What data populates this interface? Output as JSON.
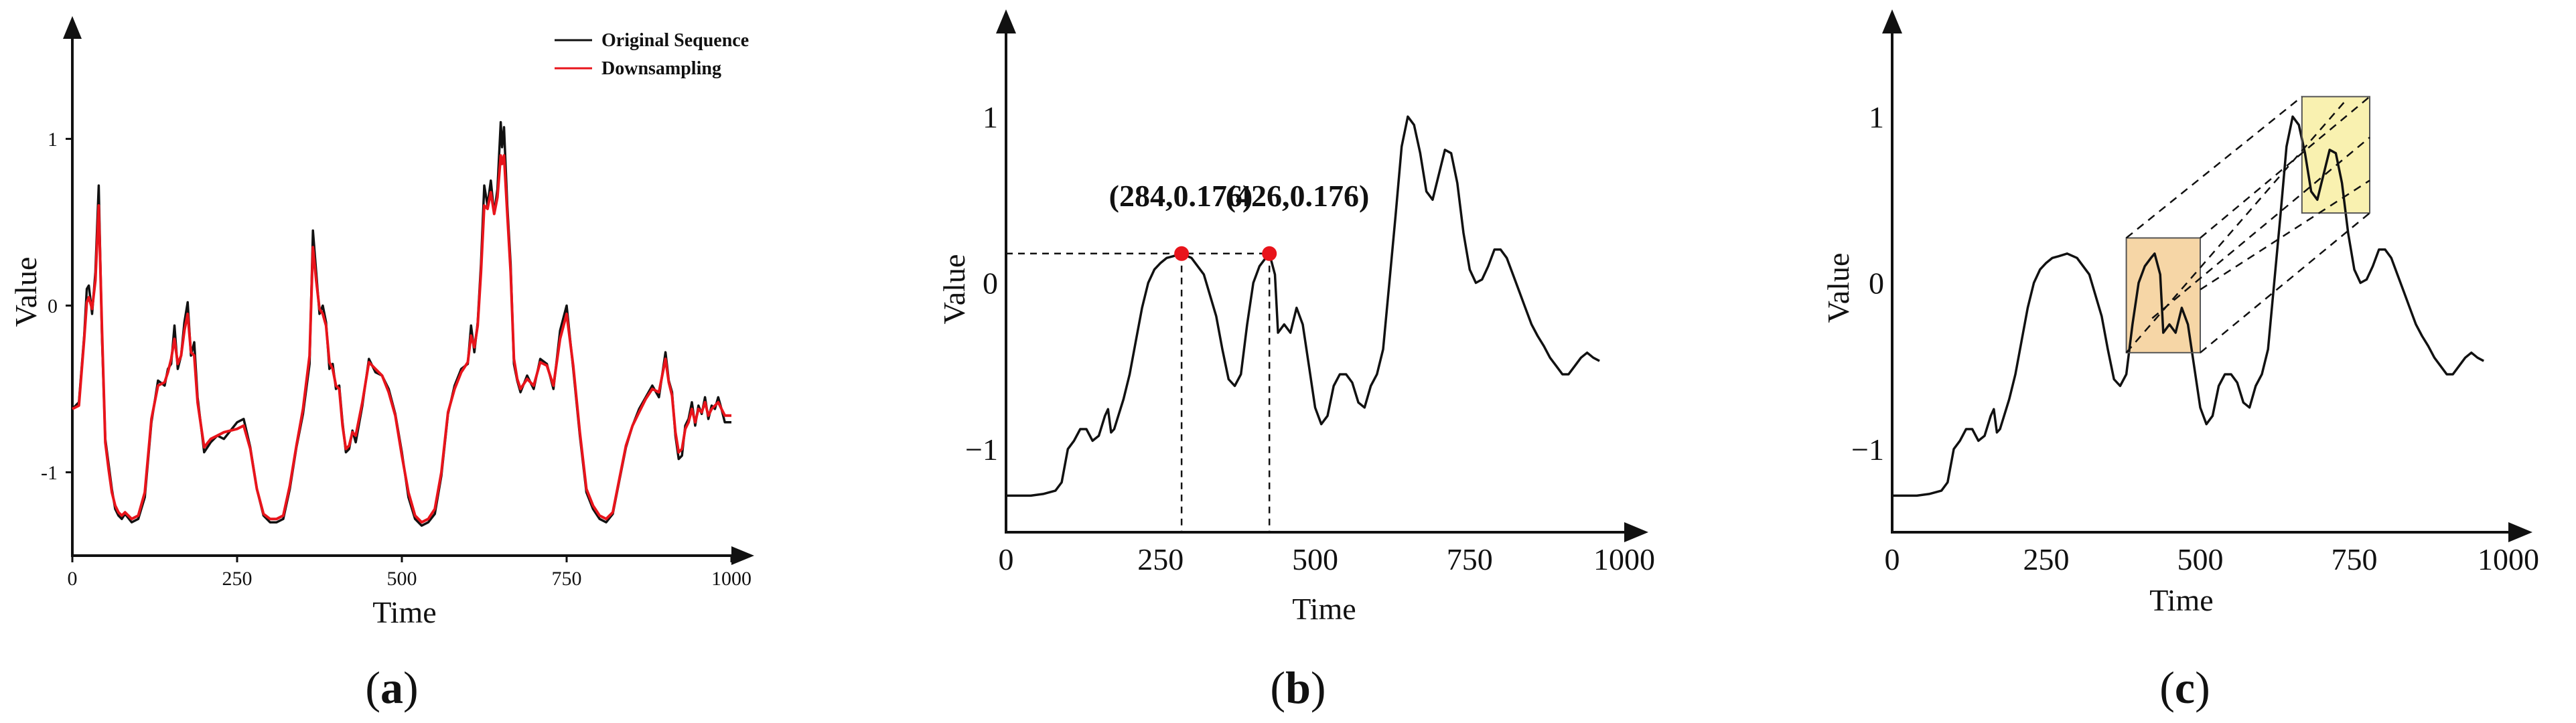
{
  "panels": [
    {
      "open": "(",
      "letter": "a",
      "close": ")"
    },
    {
      "open": "(",
      "letter": "b",
      "close": ")"
    },
    {
      "open": "(",
      "letter": "c",
      "close": ")"
    }
  ],
  "annotations": {
    "point_1": "(284,0.176)",
    "point_2": "(426,0.176)"
  },
  "colors": {
    "original": "#111111",
    "downsampling": "#e8141b",
    "marker": "#e8141b",
    "window_1_fill": "#f6d6a6",
    "window_2_fill": "#f9f1b0"
  },
  "chart_data": [
    {
      "type": "line",
      "panel": "a",
      "xlabel": "Time",
      "ylabel": "Value",
      "xlim": [
        0,
        1000
      ],
      "ylim": [
        -1.5,
        1.6
      ],
      "xticks": [
        "0",
        "250",
        "500",
        "750",
        "1000"
      ],
      "yticks": [
        "1",
        "0",
        "-1"
      ],
      "yticks_values": [
        1,
        0,
        -1
      ],
      "legend": [
        "Original Sequence",
        "Downsampling"
      ],
      "series": [
        {
          "name": "Original Sequence",
          "x": [
            0,
            10,
            18,
            22,
            25,
            30,
            35,
            40,
            45,
            50,
            55,
            60,
            65,
            70,
            75,
            80,
            90,
            100,
            110,
            120,
            130,
            140,
            145,
            150,
            155,
            160,
            165,
            170,
            175,
            180,
            185,
            190,
            200,
            210,
            220,
            230,
            240,
            250,
            260,
            270,
            280,
            290,
            300,
            310,
            320,
            330,
            340,
            350,
            360,
            365,
            370,
            375,
            380,
            385,
            390,
            395,
            400,
            405,
            410,
            415,
            420,
            425,
            430,
            440,
            450,
            460,
            470,
            480,
            490,
            500,
            510,
            520,
            530,
            540,
            550,
            560,
            570,
            580,
            590,
            600,
            605,
            610,
            615,
            620,
            625,
            630,
            635,
            640,
            645,
            650,
            652,
            655,
            660,
            665,
            670,
            675,
            680,
            690,
            700,
            710,
            720,
            730,
            740,
            750,
            760,
            770,
            780,
            790,
            800,
            810,
            820,
            830,
            840,
            850,
            860,
            870,
            880,
            890,
            900,
            905,
            910,
            915,
            920,
            925,
            930,
            935,
            940,
            945,
            950,
            955,
            960,
            965,
            970,
            975,
            980,
            985,
            990,
            1000
          ],
          "y": [
            -0.62,
            -0.58,
            -0.18,
            0.1,
            0.12,
            -0.05,
            0.2,
            0.72,
            -0.2,
            -0.8,
            -0.95,
            -1.1,
            -1.22,
            -1.26,
            -1.28,
            -1.25,
            -1.3,
            -1.28,
            -1.15,
            -0.7,
            -0.45,
            -0.48,
            -0.38,
            -0.35,
            -0.12,
            -0.38,
            -0.3,
            -0.1,
            0.02,
            -0.3,
            -0.22,
            -0.55,
            -0.88,
            -0.82,
            -0.78,
            -0.8,
            -0.75,
            -0.7,
            -0.68,
            -0.85,
            -1.1,
            -1.26,
            -1.3,
            -1.3,
            -1.28,
            -1.1,
            -0.85,
            -0.65,
            -0.35,
            0.45,
            0.2,
            -0.05,
            0.0,
            -0.1,
            -0.38,
            -0.35,
            -0.5,
            -0.48,
            -0.7,
            -0.88,
            -0.86,
            -0.75,
            -0.82,
            -0.6,
            -0.32,
            -0.4,
            -0.42,
            -0.5,
            -0.65,
            -0.88,
            -1.15,
            -1.28,
            -1.32,
            -1.3,
            -1.25,
            -1.02,
            -0.65,
            -0.48,
            -0.38,
            -0.35,
            -0.12,
            -0.28,
            -0.1,
            0.25,
            0.72,
            0.6,
            0.75,
            0.55,
            0.7,
            1.1,
            0.95,
            1.07,
            0.6,
            0.25,
            -0.35,
            -0.45,
            -0.52,
            -0.42,
            -0.5,
            -0.32,
            -0.35,
            -0.5,
            -0.15,
            0.0,
            -0.38,
            -0.78,
            -1.12,
            -1.22,
            -1.28,
            -1.3,
            -1.25,
            -1.05,
            -0.85,
            -0.72,
            -0.62,
            -0.55,
            -0.48,
            -0.55,
            -0.28,
            -0.45,
            -0.52,
            -0.78,
            -0.92,
            -0.9,
            -0.72,
            -0.68,
            -0.58,
            -0.72,
            -0.6,
            -0.65,
            -0.55,
            -0.68,
            -0.6,
            -0.62,
            -0.55,
            -0.62,
            -0.7,
            -0.7
          ]
        },
        {
          "name": "Downsampling",
          "x": [
            0,
            10,
            18,
            22,
            25,
            30,
            35,
            40,
            45,
            50,
            55,
            60,
            65,
            70,
            75,
            80,
            90,
            100,
            110,
            120,
            130,
            140,
            145,
            150,
            155,
            160,
            165,
            170,
            175,
            180,
            185,
            190,
            200,
            210,
            220,
            230,
            240,
            250,
            260,
            270,
            280,
            290,
            300,
            310,
            320,
            330,
            340,
            350,
            360,
            365,
            370,
            375,
            380,
            385,
            390,
            395,
            400,
            405,
            410,
            415,
            420,
            425,
            430,
            440,
            450,
            460,
            470,
            480,
            490,
            500,
            510,
            520,
            530,
            540,
            550,
            560,
            570,
            580,
            590,
            600,
            605,
            610,
            615,
            620,
            625,
            630,
            635,
            640,
            645,
            650,
            652,
            655,
            660,
            665,
            670,
            675,
            680,
            690,
            700,
            710,
            720,
            730,
            740,
            750,
            760,
            770,
            780,
            790,
            800,
            810,
            820,
            830,
            840,
            850,
            860,
            870,
            880,
            890,
            900,
            905,
            910,
            915,
            920,
            925,
            930,
            935,
            940,
            945,
            950,
            955,
            960,
            965,
            970,
            975,
            980,
            985,
            990,
            1000
          ],
          "y": [
            -0.62,
            -0.6,
            -0.2,
            0.02,
            0.05,
            -0.02,
            0.15,
            0.6,
            -0.15,
            -0.82,
            -0.98,
            -1.12,
            -1.2,
            -1.24,
            -1.26,
            -1.24,
            -1.28,
            -1.26,
            -1.12,
            -0.68,
            -0.48,
            -0.46,
            -0.4,
            -0.32,
            -0.2,
            -0.35,
            -0.3,
            -0.15,
            -0.05,
            -0.28,
            -0.3,
            -0.58,
            -0.85,
            -0.8,
            -0.78,
            -0.76,
            -0.75,
            -0.74,
            -0.72,
            -0.86,
            -1.1,
            -1.25,
            -1.28,
            -1.28,
            -1.26,
            -1.08,
            -0.84,
            -0.62,
            -0.3,
            0.35,
            0.15,
            -0.02,
            -0.05,
            -0.12,
            -0.34,
            -0.38,
            -0.48,
            -0.5,
            -0.72,
            -0.86,
            -0.84,
            -0.76,
            -0.78,
            -0.58,
            -0.34,
            -0.38,
            -0.42,
            -0.52,
            -0.66,
            -0.9,
            -1.12,
            -1.26,
            -1.3,
            -1.28,
            -1.22,
            -1.0,
            -0.64,
            -0.5,
            -0.4,
            -0.34,
            -0.18,
            -0.25,
            -0.12,
            0.2,
            0.6,
            0.58,
            0.68,
            0.55,
            0.65,
            0.9,
            0.85,
            0.9,
            0.55,
            0.2,
            -0.32,
            -0.44,
            -0.5,
            -0.44,
            -0.48,
            -0.34,
            -0.36,
            -0.48,
            -0.2,
            -0.05,
            -0.36,
            -0.76,
            -1.1,
            -1.2,
            -1.26,
            -1.28,
            -1.24,
            -1.04,
            -0.84,
            -0.72,
            -0.64,
            -0.56,
            -0.5,
            -0.52,
            -0.32,
            -0.46,
            -0.54,
            -0.76,
            -0.88,
            -0.86,
            -0.74,
            -0.7,
            -0.62,
            -0.7,
            -0.62,
            -0.64,
            -0.58,
            -0.66,
            -0.62,
            -0.6,
            -0.58,
            -0.62,
            -0.66,
            -0.66
          ]
        }
      ]
    },
    {
      "type": "line",
      "panel": "b",
      "xlabel": "Time",
      "ylabel": "Value",
      "xlim": [
        0,
        1000
      ],
      "ylim": [
        -1.5,
        1.5
      ],
      "xticks": [
        "0",
        "250",
        "500",
        "750",
        "1000"
      ],
      "yticks": [
        "1",
        "0",
        "−1"
      ],
      "yticks_values": [
        1,
        0,
        -1
      ],
      "highlighted_points": [
        {
          "x": 284,
          "y": 0.176,
          "label": "(284,0.176)"
        },
        {
          "x": 426,
          "y": 0.176,
          "label": "(426,0.176)"
        }
      ],
      "series": [
        {
          "name": "sequence",
          "x": [
            0,
            20,
            40,
            60,
            80,
            90,
            100,
            110,
            120,
            130,
            140,
            150,
            160,
            165,
            170,
            175,
            180,
            190,
            200,
            210,
            220,
            230,
            240,
            250,
            260,
            270,
            284,
            300,
            320,
            340,
            350,
            360,
            370,
            380,
            390,
            400,
            410,
            420,
            426,
            435,
            440,
            450,
            460,
            470,
            480,
            490,
            500,
            510,
            520,
            530,
            540,
            550,
            560,
            570,
            580,
            590,
            600,
            610,
            620,
            630,
            640,
            650,
            660,
            670,
            680,
            690,
            700,
            710,
            720,
            730,
            740,
            750,
            760,
            770,
            780,
            790,
            800,
            810,
            820,
            830,
            840,
            850,
            860,
            870,
            880,
            890,
            900,
            910,
            920,
            930,
            940,
            950,
            960
          ],
          "y": [
            -1.28,
            -1.28,
            -1.28,
            -1.27,
            -1.25,
            -1.2,
            -1.0,
            -0.95,
            -0.88,
            -0.88,
            -0.95,
            -0.92,
            -0.8,
            -0.76,
            -0.9,
            -0.88,
            -0.82,
            -0.7,
            -0.55,
            -0.35,
            -0.15,
            0.0,
            0.08,
            0.12,
            0.15,
            0.16,
            0.176,
            0.15,
            0.05,
            -0.2,
            -0.4,
            -0.58,
            -0.62,
            -0.55,
            -0.25,
            0.0,
            0.1,
            0.15,
            0.176,
            0.05,
            -0.3,
            -0.25,
            -0.3,
            -0.15,
            -0.25,
            -0.5,
            -0.75,
            -0.85,
            -0.8,
            -0.62,
            -0.55,
            -0.55,
            -0.6,
            -0.72,
            -0.75,
            -0.62,
            -0.55,
            -0.4,
            0.0,
            0.4,
            0.82,
            1.0,
            0.95,
            0.78,
            0.55,
            0.5,
            0.65,
            0.8,
            0.78,
            0.6,
            0.3,
            0.08,
            0.0,
            0.02,
            0.1,
            0.2,
            0.2,
            0.15,
            0.05,
            -0.05,
            -0.15,
            -0.25,
            -0.32,
            -0.38,
            -0.45,
            -0.5,
            -0.55,
            -0.55,
            -0.5,
            -0.45,
            -0.42,
            -0.45,
            -0.47
          ]
        }
      ]
    },
    {
      "type": "line",
      "panel": "c",
      "xlabel": "Time",
      "ylabel": "Value",
      "xlim": [
        0,
        1000
      ],
      "ylim": [
        -1.5,
        1.5
      ],
      "xticks": [
        "0",
        "250",
        "500",
        "750",
        "1000"
      ],
      "yticks": [
        "1",
        "0",
        "−1"
      ],
      "yticks_values": [
        1,
        0,
        -1
      ],
      "windows": [
        {
          "x_start": 380,
          "x_end": 500,
          "y_low": -0.42,
          "y_high": 0.27
        },
        {
          "x_start": 665,
          "x_end": 775,
          "y_low": 0.42,
          "y_high": 1.12
        }
      ],
      "series": [
        {
          "name": "sequence",
          "x": [
            0,
            20,
            40,
            60,
            80,
            90,
            100,
            110,
            120,
            130,
            140,
            150,
            160,
            165,
            170,
            175,
            180,
            190,
            200,
            210,
            220,
            230,
            240,
            250,
            260,
            270,
            284,
            300,
            320,
            340,
            350,
            360,
            370,
            380,
            390,
            400,
            410,
            420,
            426,
            435,
            440,
            450,
            460,
            470,
            480,
            490,
            500,
            510,
            520,
            530,
            540,
            550,
            560,
            570,
            580,
            590,
            600,
            610,
            620,
            630,
            640,
            650,
            660,
            670,
            680,
            690,
            700,
            710,
            720,
            730,
            740,
            750,
            760,
            770,
            780,
            790,
            800,
            810,
            820,
            830,
            840,
            850,
            860,
            870,
            880,
            890,
            900,
            910,
            920,
            930,
            940,
            950,
            960
          ],
          "y": [
            -1.28,
            -1.28,
            -1.28,
            -1.27,
            -1.25,
            -1.2,
            -1.0,
            -0.95,
            -0.88,
            -0.88,
            -0.95,
            -0.92,
            -0.8,
            -0.76,
            -0.9,
            -0.88,
            -0.82,
            -0.7,
            -0.55,
            -0.35,
            -0.15,
            0.0,
            0.08,
            0.12,
            0.15,
            0.16,
            0.176,
            0.15,
            0.05,
            -0.2,
            -0.4,
            -0.58,
            -0.62,
            -0.55,
            -0.25,
            0.0,
            0.1,
            0.15,
            0.176,
            0.05,
            -0.3,
            -0.25,
            -0.3,
            -0.15,
            -0.25,
            -0.5,
            -0.75,
            -0.85,
            -0.8,
            -0.62,
            -0.55,
            -0.55,
            -0.6,
            -0.72,
            -0.75,
            -0.62,
            -0.55,
            -0.4,
            0.0,
            0.4,
            0.82,
            1.0,
            0.95,
            0.78,
            0.55,
            0.5,
            0.65,
            0.8,
            0.78,
            0.6,
            0.3,
            0.08,
            0.0,
            0.02,
            0.1,
            0.2,
            0.2,
            0.15,
            0.05,
            -0.05,
            -0.15,
            -0.25,
            -0.32,
            -0.38,
            -0.45,
            -0.5,
            -0.55,
            -0.55,
            -0.5,
            -0.45,
            -0.42,
            -0.45,
            -0.47
          ]
        }
      ]
    }
  ]
}
